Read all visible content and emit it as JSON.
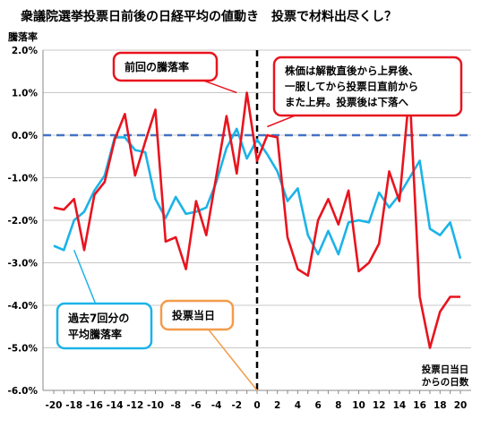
{
  "chart_data": {
    "type": "line",
    "title": "衆議院選挙投票日前後の日経平均の値動き　投票で材料出尽くし？",
    "ylabel": "騰落率",
    "xlabel": "投票日当日\nからの日数",
    "ylim": [
      -6,
      2
    ],
    "yticks": [
      2,
      1,
      0,
      -1,
      -2,
      -3,
      -4,
      -5,
      -6
    ],
    "ytick_labels": [
      "2.0%",
      "1.0%",
      "0.0%",
      "-1.0%",
      "-2.0%",
      "-3.0%",
      "-4.0%",
      "-5.0%",
      "-6.0%"
    ],
    "xlim": [
      -20,
      20
    ],
    "xticks": [
      -20,
      -18,
      -16,
      -14,
      -12,
      -10,
      -8,
      -6,
      -4,
      -2,
      0,
      2,
      4,
      6,
      8,
      10,
      12,
      14,
      16,
      18,
      20
    ],
    "grid": "horizontal",
    "reference_lines": {
      "zero_line_dashed": 0,
      "vertical_dashed_at_x": 0
    },
    "series": [
      {
        "name": "前回の騰落率",
        "color": "#e8141e",
        "x": [
          -20,
          -19,
          -18,
          -17,
          -16,
          -15,
          -14,
          -13,
          -12,
          -11,
          -10,
          -9,
          -8,
          -7,
          -6,
          -5,
          -4,
          -3,
          -2,
          -1,
          0,
          1,
          2,
          3,
          4,
          5,
          6,
          7,
          8,
          9,
          10,
          11,
          12,
          13,
          14,
          15,
          16,
          17,
          18,
          19,
          20
        ],
        "values": [
          -1.7,
          -1.75,
          -1.5,
          -2.7,
          -1.4,
          -1.1,
          -0.1,
          0.5,
          -0.95,
          -0.15,
          0.6,
          -2.5,
          -2.4,
          -3.15,
          -1.55,
          -2.35,
          -0.95,
          0.45,
          -0.9,
          1.0,
          -0.6,
          0.0,
          -0.05,
          -2.4,
          -3.15,
          -3.3,
          -2.0,
          -1.5,
          -2.1,
          -1.3,
          -3.2,
          -3.0,
          -2.55,
          -0.85,
          -1.55,
          1.05,
          -3.8,
          -5.0,
          -4.15,
          -3.8,
          -3.8
        ]
      },
      {
        "name": "過去7回分の平均騰落率",
        "color": "#1bb3e8",
        "x": [
          -20,
          -19,
          -18,
          -17,
          -16,
          -15,
          -14,
          -13,
          -12,
          -11,
          -10,
          -9,
          -8,
          -7,
          -6,
          -5,
          -4,
          -3,
          -2,
          -1,
          0,
          1,
          2,
          3,
          4,
          5,
          6,
          7,
          8,
          9,
          10,
          11,
          12,
          13,
          14,
          15,
          16,
          17,
          18,
          19,
          20
        ],
        "values": [
          -2.6,
          -2.7,
          -2.0,
          -1.8,
          -1.3,
          -0.95,
          -0.05,
          -0.05,
          -0.35,
          -0.4,
          -1.5,
          -1.95,
          -1.45,
          -1.85,
          -1.8,
          -1.7,
          -1.1,
          -0.3,
          0.15,
          -0.55,
          -0.1,
          -0.45,
          -0.85,
          -1.55,
          -1.25,
          -2.35,
          -2.8,
          -2.25,
          -2.8,
          -2.05,
          -2.0,
          -2.05,
          -1.35,
          -1.7,
          -1.4,
          -1.0,
          -0.6,
          -2.2,
          -2.35,
          -2.05,
          -2.9
        ]
      }
    ],
    "annotations": [
      {
        "id": "prev",
        "text": "前回の騰落率"
      },
      {
        "id": "stock",
        "text": "株価は解散直後から上昇後、\n一服してから投票日直前から\nまた上昇。投票後は下落へ"
      },
      {
        "id": "avg",
        "text": "過去7回分の\n平均騰落率"
      },
      {
        "id": "vote",
        "text": "投票当日"
      }
    ]
  }
}
